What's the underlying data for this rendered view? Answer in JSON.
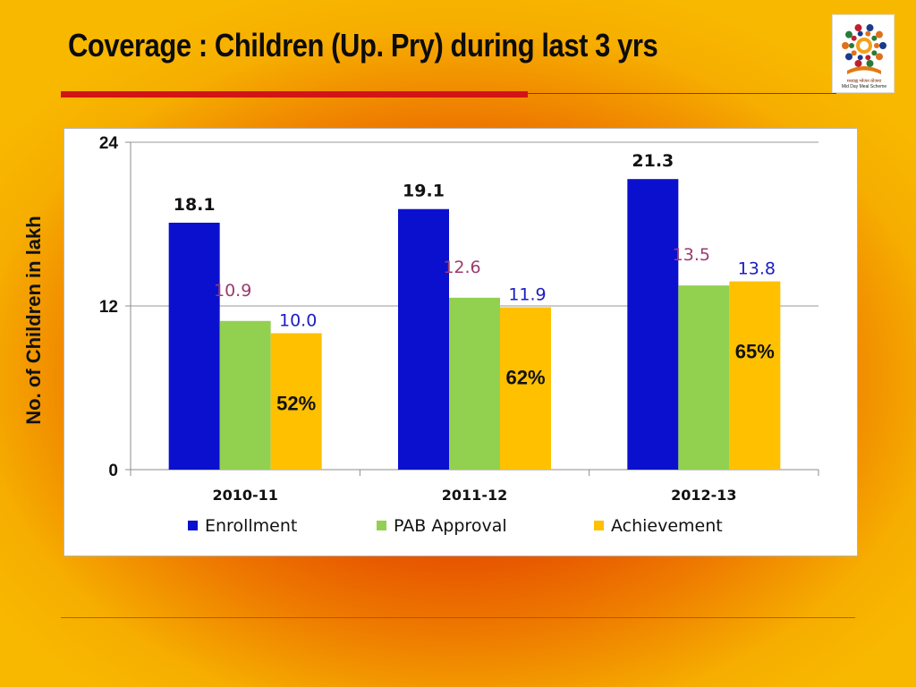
{
  "slide": {
    "title": "Coverage : Children (Up. Pry) during last 3 yrs",
    "logo": {
      "icon": "mid-day-meal-logo",
      "caption_script": "मध्याह्न भोजन योजना",
      "caption": "Mid Day Meal Scheme"
    }
  },
  "colors": {
    "enrollment": "#0b10cf",
    "pab_approval": "#92d050",
    "achievement": "#ffc000",
    "pab_label": "#9b3a6e",
    "achievement_label": "#1c1cc4"
  },
  "chart_data": {
    "type": "bar",
    "title": "",
    "xlabel": "",
    "ylabel": "No. of Children in lakh",
    "ylim": [
      0,
      24
    ],
    "yticks": [
      0,
      12,
      24
    ],
    "grid": true,
    "legend_position": "bottom",
    "categories": [
      "2010-11",
      "2011-12",
      "2012-13"
    ],
    "series": [
      {
        "name": "Enrollment",
        "values": [
          18.1,
          19.1,
          21.3
        ],
        "labels": [
          "18.1",
          "19.1",
          "21.3"
        ]
      },
      {
        "name": "PAB Approval",
        "values": [
          10.9,
          12.6,
          13.5
        ],
        "labels": [
          "10.9",
          "12.6",
          "13.5"
        ]
      },
      {
        "name": "Achievement",
        "values": [
          10.0,
          11.9,
          13.8
        ],
        "labels": [
          "10.0",
          "11.9",
          "13.8"
        ]
      }
    ],
    "annotations": [
      "52%",
      "62%",
      "65%"
    ]
  }
}
